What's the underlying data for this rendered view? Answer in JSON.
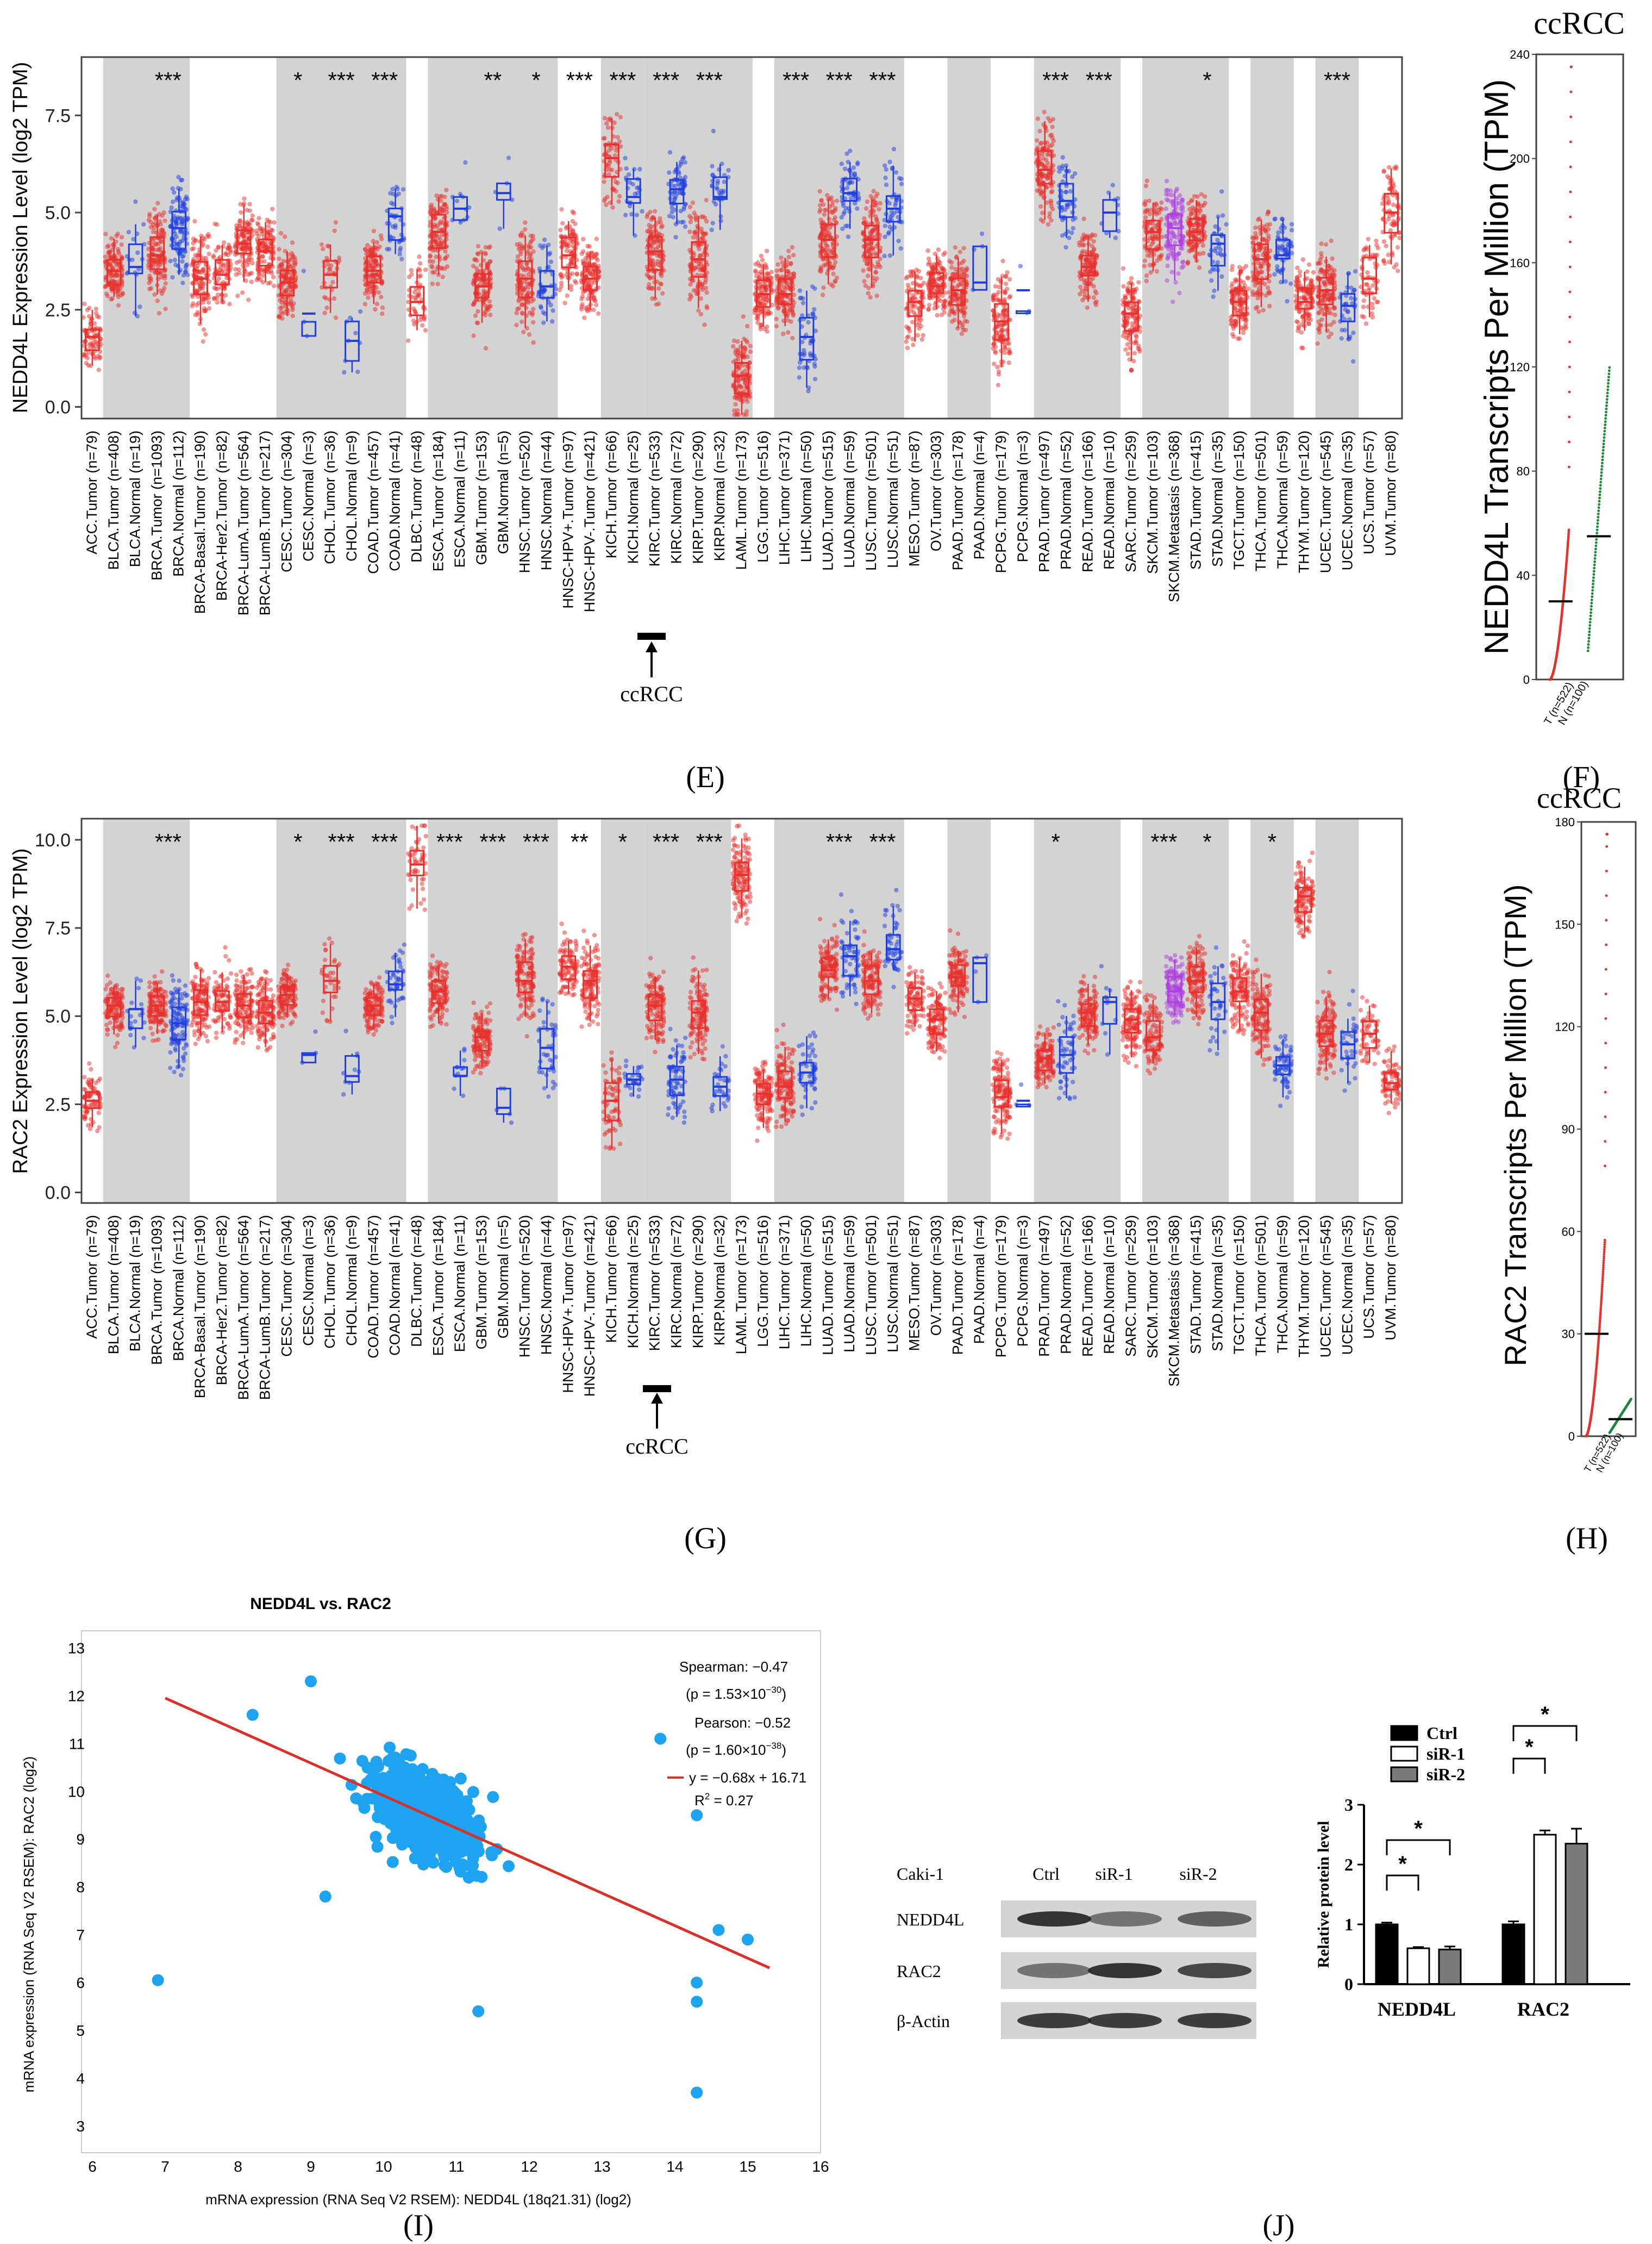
{
  "panel_labels": {
    "E": "(E)",
    "F": "(F)",
    "G": "(G)",
    "H": "(H)",
    "I": "(I)",
    "J": "(J)"
  },
  "colors": {
    "tumor": "#e8302c",
    "normal": "#1f3fe0",
    "metastasis": "#b040e0",
    "shade": "#d3d3d3",
    "scatter": "#1ea3f0",
    "fit": "#d9312a",
    "green": "#1a8a3a",
    "gray_bar": "#7a7a7a"
  },
  "cancer_categories": [
    "ACC.Tumor (n=79)",
    "BLCA.Tumor (n=408)",
    "BLCA.Normal (n=19)",
    "BRCA.Tumor (n=1093)",
    "BRCA.Normal (n=112)",
    "BRCA-Basal.Tumor (n=190)",
    "BRCA-Her2.Tumor (n=82)",
    "BRCA-LumA.Tumor (n=564)",
    "BRCA-LumB.Tumor (n=217)",
    "CESC.Tumor (n=304)",
    "CESC.Normal (n=3)",
    "CHOL.Tumor (n=36)",
    "CHOL.Normal (n=9)",
    "COAD.Tumor (n=457)",
    "COAD.Normal (n=41)",
    "DLBC.Tumor (n=48)",
    "ESCA.Tumor (n=184)",
    "ESCA.Normal (n=11)",
    "GBM.Tumor (n=153)",
    "GBM.Normal (n=5)",
    "HNSC.Tumor (n=520)",
    "HNSC.Normal (n=44)",
    "HNSC-HPV+.Tumor (n=97)",
    "HNSC-HPV-.Tumor (n=421)",
    "KICH.Tumor (n=66)",
    "KICH.Normal (n=25)",
    "KIRC.Tumor (n=533)",
    "KIRC.Normal (n=72)",
    "KIRP.Tumor (n=290)",
    "KIRP.Normal (n=32)",
    "LAML.Tumor (n=173)",
    "LGG.Tumor (n=516)",
    "LIHC.Tumor (n=371)",
    "LIHC.Normal (n=50)",
    "LUAD.Tumor (n=515)",
    "LUAD.Normal (n=59)",
    "LUSC.Tumor (n=501)",
    "LUSC.Normal (n=51)",
    "MESO.Tumor (n=87)",
    "OV.Tumor (n=303)",
    "PAAD.Tumor (n=178)",
    "PAAD.Normal (n=4)",
    "PCPG.Tumor (n=179)",
    "PCPG.Normal (n=3)",
    "PRAD.Tumor (n=497)",
    "PRAD.Normal (n=52)",
    "READ.Tumor (n=166)",
    "READ.Normal (n=10)",
    "SARC.Tumor (n=259)",
    "SKCM.Tumor (n=103)",
    "SKCM.Metastasis (n=368)",
    "STAD.Tumor (n=415)",
    "STAD.Normal (n=35)",
    "TGCT.Tumor (n=150)",
    "THCA.Tumor (n=501)",
    "THCA.Normal (n=59)",
    "THYM.Tumor (n=120)",
    "UCEC.Tumor (n=545)",
    "UCEC.Normal (n=35)",
    "UCS.Tumor (n=57)",
    "UVM.Tumor (n=80)"
  ],
  "ccrcc_label": "ccRCC",
  "chart_data": [
    {
      "id": "E",
      "type": "box",
      "ylabel": "NEDD4L Expression Level (log2 TPM)",
      "ylim": [
        -0.3,
        9.0
      ],
      "yticks": [
        0.0,
        2.5,
        5.0,
        7.5
      ],
      "ytick_labels": [
        "0.0",
        "2.5",
        "5.0",
        "7.5"
      ],
      "shaded_groups": [
        "BLCA",
        "BRCA",
        "CESC",
        "CHOL",
        "COAD",
        "ESCA",
        "GBM",
        "HNSC",
        "KICH",
        "KIRC",
        "KIRP",
        "LAML",
        "LIHC",
        "LUAD",
        "LUSC",
        "PAAD",
        "PRAD",
        "READ",
        "SKCM",
        "STAD",
        "THCA",
        "UCEC"
      ],
      "medians": [
        1.8,
        3.5,
        3.6,
        3.9,
        4.6,
        3.3,
        3.4,
        4.2,
        4.0,
        3.2,
        2.4,
        3.4,
        1.7,
        3.5,
        4.9,
        2.7,
        4.5,
        5.1,
        3.1,
        5.5,
        3.3,
        3.1,
        3.9,
        3.3,
        6.4,
        5.4,
        4.0,
        5.6,
        3.8,
        5.4,
        0.8,
        2.9,
        2.9,
        1.8,
        4.3,
        5.5,
        4.3,
        5.1,
        2.7,
        3.1,
        3.0,
        3.2,
        2.2,
        3.0,
        6.1,
        5.3,
        3.6,
        5.0,
        2.4,
        4.5,
        4.6,
        4.5,
        4.2,
        2.7,
        3.8,
        3.9,
        2.7,
        3.0,
        2.6,
        3.3,
        5.0
      ],
      "significance": [
        {
          "between": [
            3,
            4
          ],
          "label": "***"
        },
        {
          "between": [
            9,
            10
          ],
          "label": "*"
        },
        {
          "between": [
            11,
            12
          ],
          "label": "***"
        },
        {
          "between": [
            13,
            14
          ],
          "label": "***"
        },
        {
          "between": [
            18,
            19
          ],
          "label": "**"
        },
        {
          "between": [
            20,
            21
          ],
          "label": "*"
        },
        {
          "between": [
            22,
            23
          ],
          "label": "***"
        },
        {
          "between": [
            24,
            25
          ],
          "label": "***"
        },
        {
          "between": [
            26,
            27
          ],
          "label": "***"
        },
        {
          "between": [
            28,
            29
          ],
          "label": "***"
        },
        {
          "between": [
            32,
            33
          ],
          "label": "***"
        },
        {
          "between": [
            34,
            35
          ],
          "label": "***"
        },
        {
          "between": [
            36,
            37
          ],
          "label": "***"
        },
        {
          "between": [
            44,
            45
          ],
          "label": "***"
        },
        {
          "between": [
            46,
            47
          ],
          "label": "***"
        },
        {
          "between": [
            51,
            52
          ],
          "label": "*"
        },
        {
          "between": [
            57,
            58
          ],
          "label": "***"
        }
      ]
    },
    {
      "id": "G",
      "type": "box",
      "ylabel": "RAC2 Expression Level (log2 TPM)",
      "ylim": [
        -0.3,
        10.6
      ],
      "yticks": [
        0.0,
        2.5,
        5.0,
        7.5,
        10.0
      ],
      "ytick_labels": [
        "0.0",
        "2.5",
        "5.0",
        "7.5",
        "10.0"
      ],
      "shaded_groups": [
        "BLCA",
        "BRCA",
        "CESC",
        "CHOL",
        "COAD",
        "ESCA",
        "GBM",
        "HNSC",
        "KICH",
        "KIRC",
        "KIRP",
        "LIHC",
        "LUAD",
        "LUSC",
        "PAAD",
        "PRAD",
        "READ",
        "SKCM",
        "STAD",
        "THCA",
        "UCEC"
      ],
      "medians": [
        2.6,
        5.3,
        5.2,
        5.3,
        4.8,
        5.4,
        5.4,
        5.3,
        5.1,
        5.6,
        3.9,
        6.0,
        3.3,
        5.3,
        5.9,
        9.3,
        5.7,
        3.3,
        4.4,
        2.4,
        6.0,
        4.1,
        6.4,
        6.0,
        2.6,
        3.2,
        5.3,
        3.2,
        5.1,
        3.0,
        9.0,
        2.8,
        3.0,
        3.4,
        6.3,
        6.7,
        6.0,
        6.9,
        5.5,
        4.9,
        6.1,
        6.5,
        2.7,
        2.6,
        3.8,
        3.9,
        5.1,
        5.4,
        4.9,
        4.4,
        5.7,
        6.0,
        5.4,
        5.7,
        5.1,
        3.6,
        8.4,
        4.5,
        4.2,
        4.5,
        3.1
      ],
      "significance": [
        {
          "between": [
            3,
            4
          ],
          "label": "***"
        },
        {
          "between": [
            9,
            10
          ],
          "label": "*"
        },
        {
          "between": [
            11,
            12
          ],
          "label": "***"
        },
        {
          "between": [
            13,
            14
          ],
          "label": "***"
        },
        {
          "between": [
            16,
            17
          ],
          "label": "***"
        },
        {
          "between": [
            18,
            19
          ],
          "label": "***"
        },
        {
          "between": [
            20,
            21
          ],
          "label": "***"
        },
        {
          "between": [
            22,
            23
          ],
          "label": "**"
        },
        {
          "between": [
            24,
            25
          ],
          "label": "*"
        },
        {
          "between": [
            26,
            27
          ],
          "label": "***"
        },
        {
          "between": [
            28,
            29
          ],
          "label": "***"
        },
        {
          "between": [
            34,
            35
          ],
          "label": "***"
        },
        {
          "between": [
            36,
            37
          ],
          "label": "***"
        },
        {
          "between": [
            44,
            45
          ],
          "label": "*"
        },
        {
          "between": [
            49,
            50
          ],
          "label": "***"
        },
        {
          "between": [
            51,
            52
          ],
          "label": "*"
        },
        {
          "between": [
            54,
            55
          ],
          "label": "*"
        }
      ]
    },
    {
      "id": "F",
      "type": "scatter",
      "title": "ccRCC",
      "ylabel": "NEDD4L Transcripts Per Million (TPM)",
      "ylim": [
        0,
        240
      ],
      "yticks": [
        0,
        40,
        80,
        120,
        160,
        200,
        240
      ],
      "groups": [
        "T (n=522)",
        "N (n=100)"
      ],
      "medians": [
        30,
        55
      ]
    },
    {
      "id": "H",
      "type": "scatter",
      "title": "ccRCC",
      "ylabel": "RAC2 Transcripts Per Million (TPM)",
      "ylim": [
        0,
        180
      ],
      "yticks": [
        0,
        30,
        60,
        90,
        120,
        150,
        180
      ],
      "groups": [
        "T (n=522)",
        "N (n=100)"
      ],
      "medians": [
        30,
        5
      ]
    },
    {
      "id": "I",
      "type": "scatter",
      "title": "NEDD4L vs. RAC2",
      "xlabel": "mRNA expression (RNA Seq V2 RSEM): NEDD4L (18q21.31) (log2)",
      "ylabel": "mRNA expression (RNA Seq V2 RSEM): RAC2 (log2)",
      "xlim": [
        6,
        16
      ],
      "ylim": [
        2.5,
        13.3
      ],
      "xticks": [
        6,
        7,
        8,
        9,
        10,
        11,
        12,
        13,
        14,
        15,
        16
      ],
      "yticks": [
        3,
        4,
        5,
        6,
        7,
        8,
        9,
        10,
        11,
        12,
        13
      ],
      "fit": {
        "slope": -0.68,
        "intercept": 16.71,
        "x_range": [
          7,
          15.3
        ]
      },
      "outliers": [
        [
          6.9,
          6.05
        ],
        [
          9.2,
          7.8
        ],
        [
          11.3,
          5.4
        ],
        [
          13.8,
          11.1
        ],
        [
          14.3,
          3.7
        ],
        [
          14.3,
          5.6
        ],
        [
          14.3,
          9.5
        ],
        [
          14.3,
          6.0
        ],
        [
          15.0,
          6.9
        ],
        [
          14.6,
          7.1
        ],
        [
          8.2,
          11.6
        ],
        [
          9.0,
          12.3
        ]
      ],
      "stats": {
        "spearman": "Spearman: −0.47",
        "spearman_p": "(p = 1.53×10",
        "spearman_p_exp": "−30",
        "pearson": "Pearson: −0.52",
        "pearson_p": "(p = 1.60×10",
        "pearson_p_exp": "−38",
        "fit_eq": "y = −0.68x + 16.71",
        "r2_label": "R",
        "r2_value": "= 0.27"
      }
    },
    {
      "id": "J",
      "type": "bar",
      "ylabel": "Relative protein level",
      "ylim": [
        0,
        3
      ],
      "yticks": [
        0,
        1,
        2,
        3
      ],
      "categories": [
        "NEDD4L",
        "RAC2"
      ],
      "series": [
        {
          "name": "Ctrl",
          "values": [
            1.0,
            1.0
          ],
          "errors": [
            0.03,
            0.05
          ]
        },
        {
          "name": "siR-1",
          "values": [
            0.6,
            2.5
          ],
          "errors": [
            0.02,
            0.07
          ]
        },
        {
          "name": "siR-2",
          "values": [
            0.58,
            2.35
          ],
          "errors": [
            0.05,
            0.25
          ]
        }
      ],
      "significance": [
        {
          "group": 0,
          "from": 0,
          "to": 1,
          "label": "*"
        },
        {
          "group": 0,
          "from": 0,
          "to": 2,
          "label": "*"
        },
        {
          "group": 1,
          "from": 0,
          "to": 1,
          "label": "*"
        },
        {
          "group": 1,
          "from": 0,
          "to": 2,
          "label": "*"
        }
      ]
    }
  ],
  "western_blot": {
    "cell_line": "Caki-1",
    "lanes": [
      "Ctrl",
      "siR-1",
      "siR-2"
    ],
    "proteins": [
      "NEDD4L",
      "RAC2",
      "β-Actin"
    ]
  }
}
